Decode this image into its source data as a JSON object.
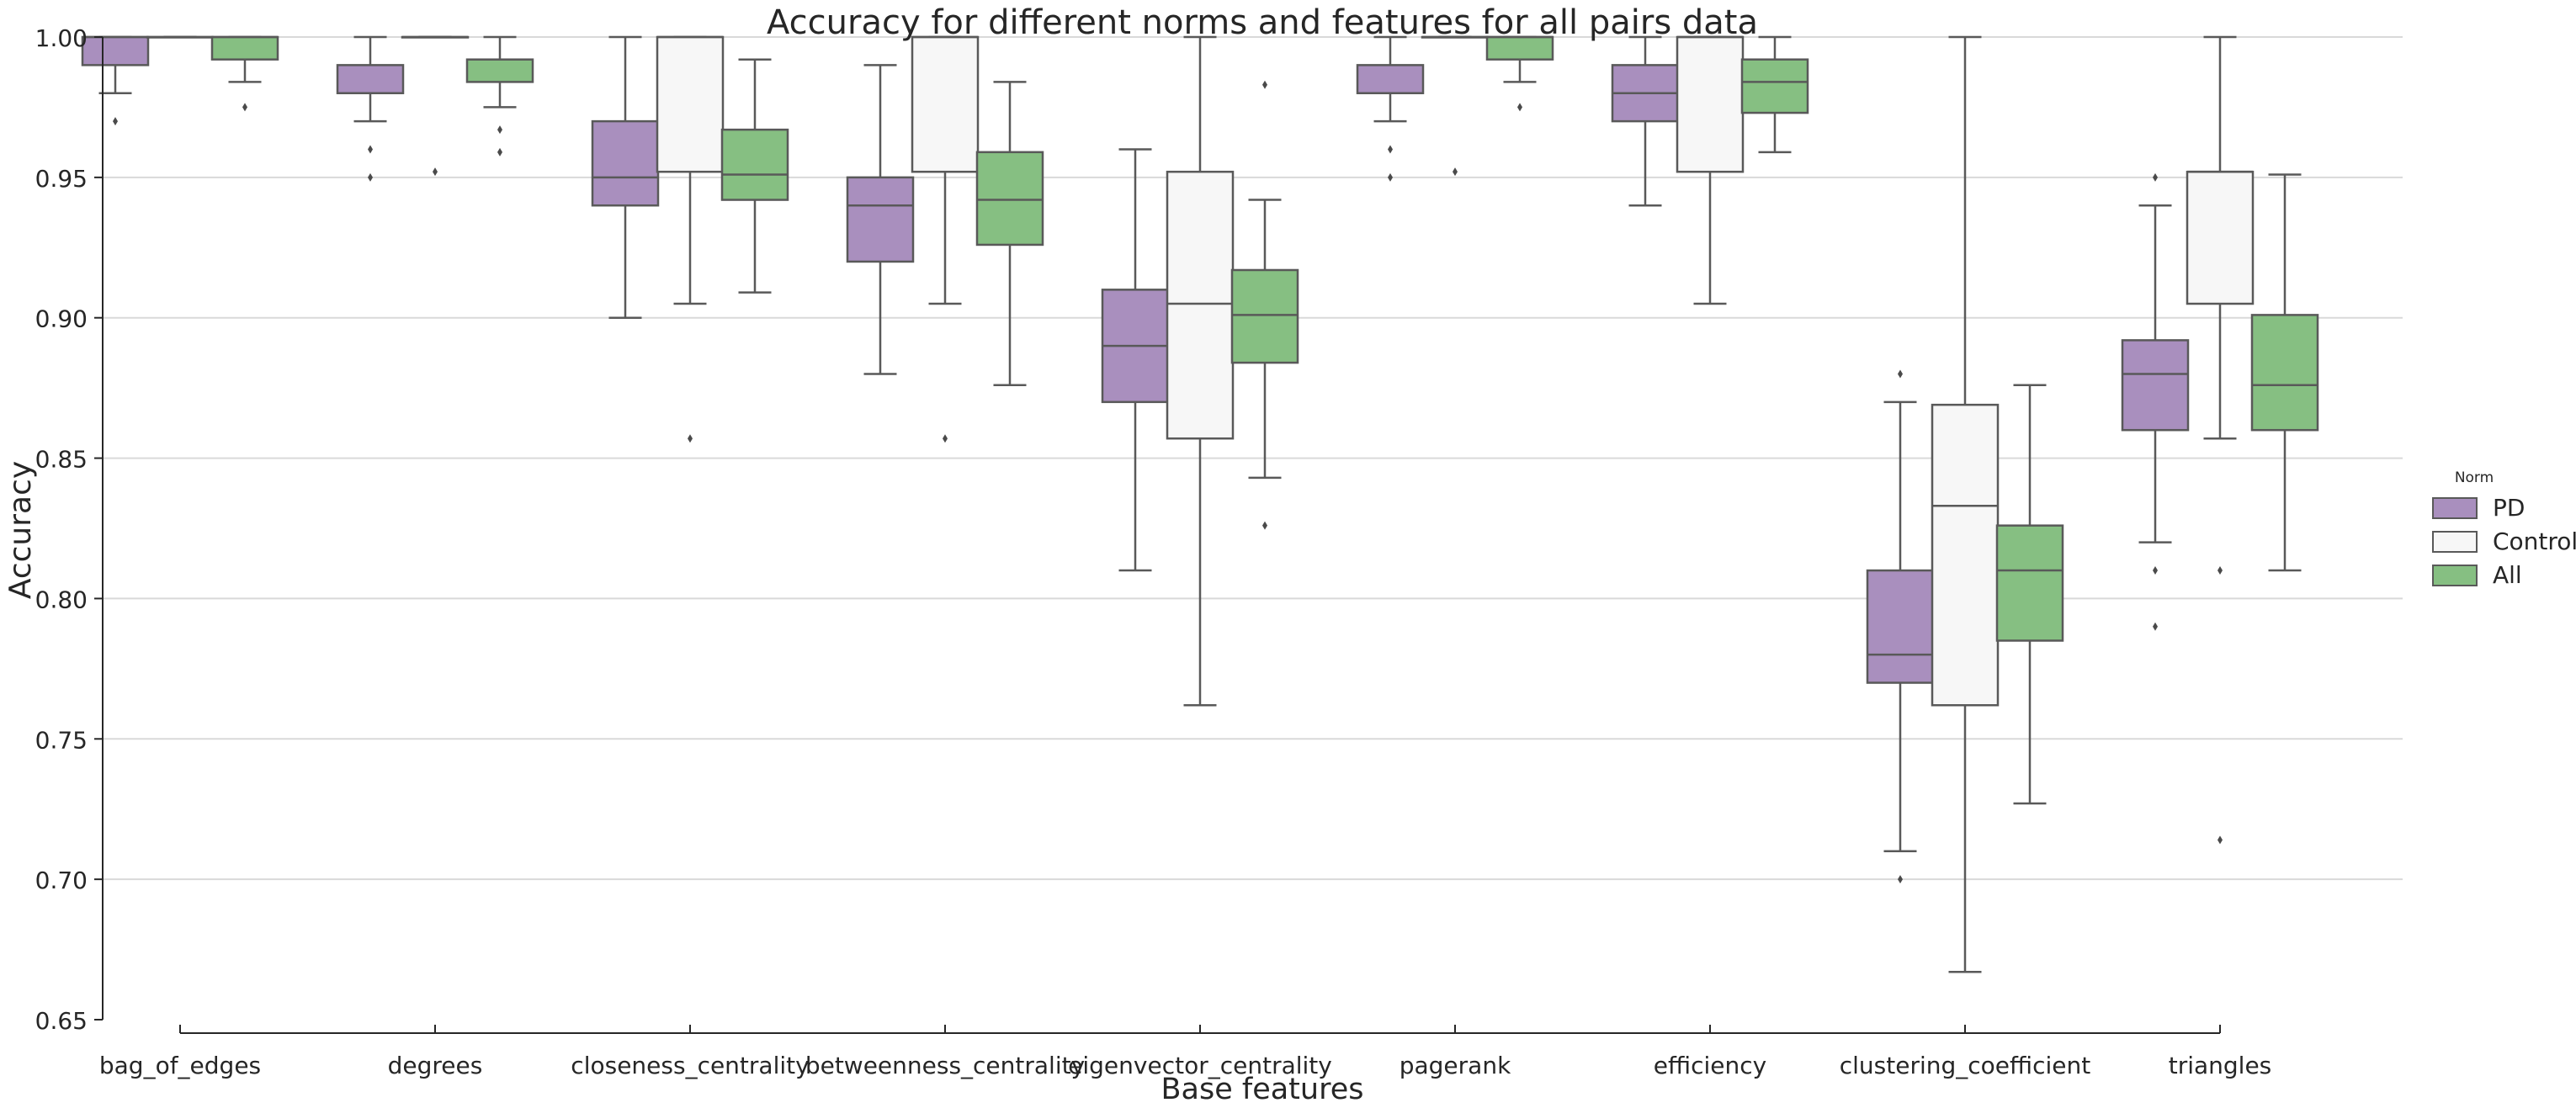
{
  "chart_data": {
    "type": "box",
    "title": "Accuracy for different norms and features for all pairs data",
    "xlabel": "Base features",
    "ylabel": "Accuracy",
    "ylim": [
      0.65,
      1.0
    ],
    "yticks": [
      "0.65",
      "0.70",
      "0.75",
      "0.80",
      "0.85",
      "0.90",
      "0.95",
      "1.00"
    ],
    "grid": "horizontal",
    "legend": {
      "title": "Norm",
      "placement": "right"
    },
    "categories": [
      "bag_of_edges",
      "degrees",
      "closeness_centrality",
      "betweenness_centrality",
      "eigenvector_centrality",
      "pagerank",
      "efficiency",
      "clustering_coefficient",
      "triangles"
    ],
    "series": [
      {
        "name": "PD",
        "color": "#a98fbe",
        "boxes": [
          {
            "whislo": 0.98,
            "q1": 0.99,
            "med": 1.0,
            "q3": 1.0,
            "whishi": 1.0,
            "fliers": [
              0.97
            ]
          },
          {
            "whislo": 0.97,
            "q1": 0.98,
            "med": 0.98,
            "q3": 0.99,
            "whishi": 1.0,
            "fliers": [
              0.96,
              0.95
            ]
          },
          {
            "whislo": 0.9,
            "q1": 0.94,
            "med": 0.95,
            "q3": 0.97,
            "whishi": 1.0,
            "fliers": []
          },
          {
            "whislo": 0.88,
            "q1": 0.92,
            "med": 0.94,
            "q3": 0.95,
            "whishi": 0.99,
            "fliers": []
          },
          {
            "whislo": 0.81,
            "q1": 0.87,
            "med": 0.89,
            "q3": 0.91,
            "whishi": 0.96,
            "fliers": []
          },
          {
            "whislo": 0.97,
            "q1": 0.98,
            "med": 0.98,
            "q3": 0.99,
            "whishi": 1.0,
            "fliers": [
              0.96,
              0.95
            ]
          },
          {
            "whislo": 0.94,
            "q1": 0.97,
            "med": 0.98,
            "q3": 0.99,
            "whishi": 1.0,
            "fliers": []
          },
          {
            "whislo": 0.71,
            "q1": 0.77,
            "med": 0.78,
            "q3": 0.81,
            "whishi": 0.87,
            "fliers": [
              0.88,
              0.7
            ]
          },
          {
            "whislo": 0.82,
            "q1": 0.86,
            "med": 0.88,
            "q3": 0.892,
            "whishi": 0.94,
            "fliers": [
              0.95,
              0.81,
              0.79
            ]
          }
        ]
      },
      {
        "name": "Control",
        "color": "#f7f7f7",
        "boxes": [
          {
            "whislo": 1.0,
            "q1": 1.0,
            "med": 1.0,
            "q3": 1.0,
            "whishi": 1.0,
            "fliers": []
          },
          {
            "whislo": 1.0,
            "q1": 1.0,
            "med": 1.0,
            "q3": 1.0,
            "whishi": 1.0,
            "fliers": [
              0.952
            ]
          },
          {
            "whislo": 0.905,
            "q1": 0.952,
            "med": 1.0,
            "q3": 1.0,
            "whishi": 1.0,
            "fliers": [
              0.857
            ]
          },
          {
            "whislo": 0.905,
            "q1": 0.952,
            "med": 1.0,
            "q3": 1.0,
            "whishi": 1.0,
            "fliers": [
              0.857
            ]
          },
          {
            "whislo": 0.762,
            "q1": 0.857,
            "med": 0.905,
            "q3": 0.952,
            "whishi": 1.0,
            "fliers": []
          },
          {
            "whislo": 1.0,
            "q1": 1.0,
            "med": 1.0,
            "q3": 1.0,
            "whishi": 1.0,
            "fliers": [
              0.952
            ]
          },
          {
            "whislo": 0.905,
            "q1": 0.952,
            "med": 1.0,
            "q3": 1.0,
            "whishi": 1.0,
            "fliers": []
          },
          {
            "whislo": 0.667,
            "q1": 0.762,
            "med": 0.833,
            "q3": 0.869,
            "whishi": 1.0,
            "fliers": []
          },
          {
            "whislo": 0.857,
            "q1": 0.905,
            "med": 0.952,
            "q3": 0.952,
            "whishi": 1.0,
            "fliers": [
              0.81,
              0.714
            ]
          }
        ]
      },
      {
        "name": "All",
        "color": "#86bf82",
        "boxes": [
          {
            "whislo": 0.984,
            "q1": 0.992,
            "med": 1.0,
            "q3": 1.0,
            "whishi": 1.0,
            "fliers": [
              0.975
            ]
          },
          {
            "whislo": 0.975,
            "q1": 0.984,
            "med": 0.992,
            "q3": 0.992,
            "whishi": 1.0,
            "fliers": [
              0.967,
              0.959
            ]
          },
          {
            "whislo": 0.909,
            "q1": 0.942,
            "med": 0.951,
            "q3": 0.967,
            "whishi": 0.992,
            "fliers": []
          },
          {
            "whislo": 0.876,
            "q1": 0.926,
            "med": 0.942,
            "q3": 0.959,
            "whishi": 0.984,
            "fliers": []
          },
          {
            "whislo": 0.843,
            "q1": 0.884,
            "med": 0.901,
            "q3": 0.917,
            "whishi": 0.942,
            "fliers": [
              0.983,
              0.826
            ]
          },
          {
            "whislo": 0.984,
            "q1": 0.992,
            "med": 1.0,
            "q3": 1.0,
            "whishi": 1.0,
            "fliers": [
              0.975
            ]
          },
          {
            "whislo": 0.959,
            "q1": 0.973,
            "med": 0.984,
            "q3": 0.992,
            "whishi": 1.0,
            "fliers": []
          },
          {
            "whislo": 0.727,
            "q1": 0.785,
            "med": 0.81,
            "q3": 0.826,
            "whishi": 0.876,
            "fliers": []
          },
          {
            "whislo": 0.81,
            "q1": 0.86,
            "med": 0.876,
            "q3": 0.901,
            "whishi": 0.951,
            "fliers": []
          }
        ]
      }
    ]
  }
}
